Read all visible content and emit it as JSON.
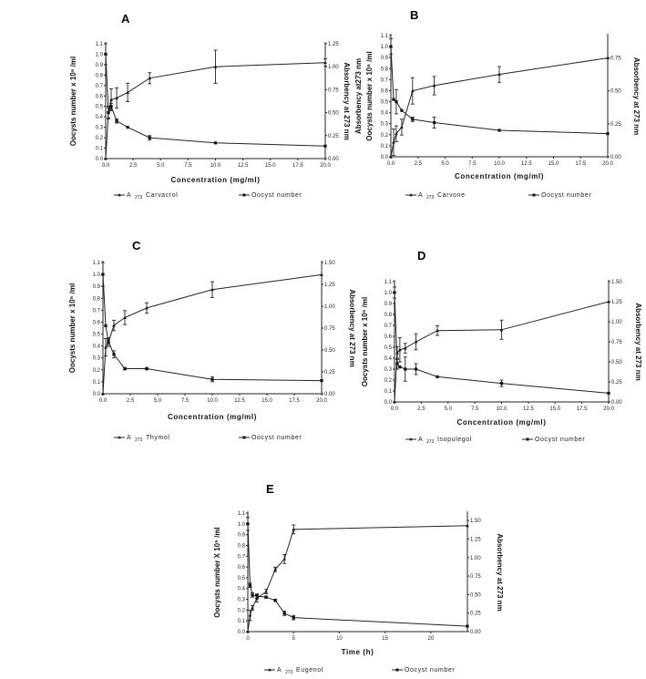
{
  "chart_data": [
    {
      "type": "line",
      "panel": "A",
      "xlabel": "Concentration (mg/ml)",
      "ylabel": "Oocysts number x 10⁶ /ml",
      "ylabel_right": "Absorbency at 273 nm",
      "xlim": [
        0,
        20
      ],
      "ylim": [
        0,
        1.1
      ],
      "ylim_right": [
        0,
        1.25
      ],
      "xticks": [
        "0.0",
        "2.5",
        "5.0",
        "7.5",
        "10.0",
        "12.5",
        "15.0",
        "17.5",
        "20.0"
      ],
      "yticks": [
        "0.0",
        "0.1",
        "0.2",
        "0.3",
        "0.4",
        "0.5",
        "0.6",
        "0.7",
        "0.8",
        "0.9",
        "1.0",
        "1.1"
      ],
      "yticks_right": [
        "0.00",
        "0.25",
        "0.50",
        "0.75",
        "1.00",
        "1.25"
      ],
      "legend": {
        "a": "A",
        "sub": "273",
        "compound": "Carvacrol",
        "oocyst": "Oocyst number"
      },
      "series": [
        {
          "name": "A 273 Carvacrol",
          "axis": "right",
          "marker": "triangle",
          "x": [
            0,
            0.25,
            0.5,
            1,
            2,
            4,
            10,
            20
          ],
          "y": [
            0,
            0.5,
            0.64,
            0.66,
            0.72,
            0.875,
            1.0,
            1.045
          ],
          "err": [
            0,
            0.07,
            0.12,
            0.11,
            0.1,
            0.06,
            0.18,
            0.04
          ]
        },
        {
          "name": "Oocyst number",
          "axis": "left",
          "marker": "square",
          "x": [
            0,
            0.25,
            0.5,
            1,
            2,
            4,
            10,
            20
          ],
          "y": [
            1.0,
            0.44,
            0.5,
            0.36,
            0.3,
            0.2,
            0.15,
            0.12
          ],
          "err": [
            0.1,
            0.05,
            0.03,
            0.02,
            0,
            0.02,
            0,
            0
          ]
        }
      ]
    },
    {
      "type": "line",
      "panel": "B",
      "xlabel": "Concentration (mg/ml)",
      "ylabel": "Oocysts number x 10⁶ /ml",
      "ylabel2": "Absorbency at273 nm",
      "ylabel_right": "Absorbency at 273 nm",
      "xlim": [
        0,
        20
      ],
      "ylim": [
        0,
        1.1
      ],
      "ylim_right": [
        0,
        0.92
      ],
      "xticks": [
        "0.0",
        "2.5",
        "5.0",
        "7.5",
        "10.0",
        "12.5",
        "15.0",
        "17.5",
        "20.0"
      ],
      "yticks": [
        "0.0",
        "0.1",
        "0.2",
        "0.3",
        "0.4",
        "0.5",
        "0.6",
        "0.7",
        "0.8",
        "0.9",
        "1.0",
        "1.1"
      ],
      "yticks_right": [
        "0.00",
        "0.25",
        "0.50",
        "0.75"
      ],
      "legend": {
        "a": "A",
        "sub": "273",
        "compound": "Carvone",
        "oocyst": "Oocyst number"
      },
      "series": [
        {
          "name": "A 273 Carvone",
          "axis": "right",
          "marker": "triangle",
          "x": [
            0,
            0.25,
            0.5,
            1,
            2,
            4,
            10,
            20
          ],
          "y": [
            0,
            0.11,
            0.175,
            0.225,
            0.5,
            0.54,
            0.625,
            0.75
          ],
          "err": [
            0,
            0.1,
            0.06,
            0.06,
            0.1,
            0.07,
            0.06,
            0
          ]
        },
        {
          "name": "Oocyst number",
          "axis": "left",
          "marker": "square",
          "x": [
            0,
            0.25,
            0.5,
            1,
            2,
            4,
            10,
            20
          ],
          "y": [
            1.0,
            0.52,
            0.5,
            0.42,
            0.34,
            0.31,
            0.24,
            0.21
          ],
          "err": [
            0.07,
            0,
            0.11,
            0,
            0.02,
            0.05,
            0,
            0
          ]
        }
      ]
    },
    {
      "type": "line",
      "panel": "C",
      "xlabel": "Concentration (mg/ml)",
      "ylabel": "Oocysts number x 10⁵ /ml",
      "ylabel_right": "Absorbency at 273 nm",
      "xlim": [
        0,
        20
      ],
      "ylim": [
        0,
        1.1
      ],
      "ylim_right": [
        0,
        1.5
      ],
      "xticks": [
        "0.0",
        "2.5",
        "5.0",
        "7.5",
        "10.0",
        "12.5",
        "15.0",
        "17.5",
        "20.0"
      ],
      "yticks": [
        "0.0",
        "0.1",
        "0.2",
        "0.3",
        "0.4",
        "0.5",
        "0.6",
        "0.7",
        "0.8",
        "0.9",
        "1.0",
        "1.1"
      ],
      "yticks_right": [
        "0.00",
        "0.25",
        "0.50",
        "0.75",
        "1.00",
        "1.25",
        "1.50"
      ],
      "legend": {
        "a": "A",
        "sub": "273",
        "compound": "Thymol",
        "oocyst": "Oocyst number"
      },
      "series": [
        {
          "name": "A 273 Thymol",
          "axis": "right",
          "marker": "triangle",
          "x": [
            0,
            0.25,
            0.5,
            1,
            2,
            4,
            10,
            20
          ],
          "y": [
            0,
            0.53,
            0.59,
            0.78,
            0.87,
            0.98,
            1.19,
            1.36
          ],
          "err": [
            0,
            0.1,
            0.05,
            0.06,
            0.08,
            0.06,
            0.09,
            0
          ]
        },
        {
          "name": "Oocyst number",
          "axis": "left",
          "marker": "square",
          "x": [
            0,
            0.25,
            0.5,
            1,
            2,
            4,
            10,
            20
          ],
          "y": [
            1.0,
            0.57,
            0.44,
            0.33,
            0.21,
            0.21,
            0.12,
            0.11
          ],
          "err": [
            0.1,
            0,
            0.02,
            0.03,
            0.01,
            0.01,
            0.02,
            0
          ]
        }
      ]
    },
    {
      "type": "line",
      "panel": "D",
      "xlabel": "Concentration (mg/ml)",
      "ylabel": "Oocysts number x 10⁵ /ml",
      "ylabel_right": "Absorbency at 273 nm",
      "xlim": [
        0,
        20
      ],
      "ylim": [
        0,
        1.1
      ],
      "ylim_right": [
        0,
        1.5
      ],
      "xticks": [
        "0.0",
        "2.5",
        "5.0",
        "7.5",
        "10.0",
        "12.5",
        "15.0",
        "17.5",
        "20.0"
      ],
      "yticks": [
        "0.0",
        "0.1",
        "0.2",
        "0.3",
        "0.4",
        "0.5",
        "0.6",
        "0.7",
        "0.8",
        "0.9",
        "1.0",
        "1.1"
      ],
      "yticks_right": [
        "0.00",
        "0.25",
        "0.50",
        "0.75",
        "1.00",
        "1.25",
        "1.50"
      ],
      "legend": {
        "a": "A",
        "sub": "273",
        "compound": "Isopulegol",
        "oocyst": "Oocyst number"
      },
      "series": [
        {
          "name": "A 273 Isopulegol",
          "axis": "right",
          "marker": "triangle",
          "x": [
            0,
            0.25,
            0.5,
            1,
            2,
            4,
            10,
            20
          ],
          "y": [
            0,
            0.61,
            0.65,
            0.67,
            0.75,
            0.89,
            0.9,
            1.25
          ],
          "err": [
            0,
            0.08,
            0.15,
            0.06,
            0.1,
            0.06,
            0.12,
            0
          ]
        },
        {
          "name": "Oocyst number",
          "axis": "left",
          "marker": "square",
          "x": [
            0,
            0.25,
            0.5,
            1,
            2,
            4,
            10,
            20
          ],
          "y": [
            1.0,
            0.35,
            0.32,
            0.3,
            0.3,
            0.23,
            0.17,
            0.08
          ],
          "err": [
            0.05,
            0.05,
            0,
            0.11,
            0.05,
            0,
            0.03,
            0
          ]
        }
      ]
    },
    {
      "type": "line",
      "panel": "E",
      "xlabel": "Time (h)",
      "ylabel": "Oocysts number X 10⁵ /ml",
      "ylabel_right": "Absorbency at 273 nm",
      "xlim": [
        0,
        24
      ],
      "ylim": [
        0,
        1.1
      ],
      "ylim_right": [
        0,
        1.6
      ],
      "xticks": [
        "0",
        "5",
        "10",
        "15",
        "20"
      ],
      "yticks": [
        "0.0",
        "0.1",
        "0.2",
        "0.3",
        "0.4",
        "0.5",
        "0.6",
        "0.7",
        "0.8",
        "0.9",
        "1.0",
        "1.1"
      ],
      "yticks_right": [
        "0.00",
        "0.25",
        "0.50",
        "0.75",
        "1.00",
        "1.25",
        "1.50"
      ],
      "legend": {
        "a": "A",
        "sub": "273",
        "compound": "Eugenol",
        "oocyst": "Oocyst number"
      },
      "series": [
        {
          "name": "A 273 Eugenol",
          "axis": "right",
          "marker": "triangle",
          "x": [
            0,
            0.25,
            0.5,
            1,
            2,
            3,
            4,
            5,
            24
          ],
          "y": [
            0,
            0.22,
            0.32,
            0.45,
            0.54,
            0.84,
            0.98,
            1.38,
            1.43
          ],
          "err": [
            0,
            0.07,
            0.03,
            0.05,
            0.03,
            0.03,
            0.06,
            0.06,
            0
          ]
        },
        {
          "name": "Oocyst number",
          "axis": "left",
          "marker": "square",
          "x": [
            0,
            0.25,
            0.5,
            1,
            2,
            3,
            4,
            5,
            24
          ],
          "y": [
            1.0,
            0.43,
            0.34,
            0.33,
            0.32,
            0.29,
            0.17,
            0.13,
            0.05
          ],
          "err": [
            0.06,
            0.02,
            0.02,
            0.02,
            0.01,
            0.01,
            0.02,
            0.02,
            0
          ]
        }
      ]
    }
  ]
}
